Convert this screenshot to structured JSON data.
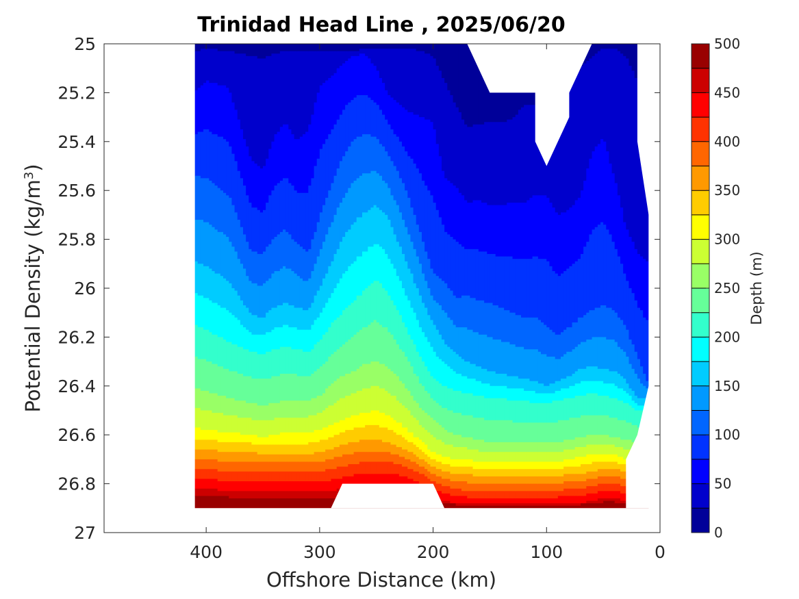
{
  "title": "Trinidad Head Line , 2025/06/20",
  "chart_data": {
    "type": "contour",
    "title": "Trinidad Head Line , 2025/06/20",
    "xlabel": "Offshore Distance (km)",
    "ylabel_prefix": "Potential Density (kg/m",
    "ylabel_sup": "3",
    "ylabel_suffix": ")",
    "x_reversed": true,
    "y_reversed": true,
    "xlim": [
      490,
      0
    ],
    "ylim": [
      25,
      27
    ],
    "x_ticks": [
      400,
      300,
      200,
      100,
      0
    ],
    "y_ticks": [
      25,
      25.2,
      25.4,
      25.6,
      25.8,
      26,
      26.2,
      26.4,
      26.6,
      26.8,
      27
    ],
    "y_tick_labels": [
      "25",
      "25.2",
      "25.4",
      "25.6",
      "25.8",
      "26",
      "26.2",
      "26.4",
      "26.6",
      "26.8",
      "27"
    ],
    "colorbar": {
      "label": "Depth (m)",
      "range": [
        0,
        500
      ],
      "ticks": [
        0,
        50,
        100,
        150,
        200,
        250,
        300,
        350,
        400,
        450,
        500
      ],
      "levels": 20,
      "colormap": "jet",
      "placement": "right"
    },
    "data_extent": {
      "x": [
        410,
        10
      ],
      "y": [
        25,
        26.9
      ]
    },
    "contour_lines": [
      {
        "level": 25,
        "x": [
          410,
          400,
          380,
          360,
          350,
          340,
          330,
          320,
          310,
          300,
          290,
          280,
          270,
          260,
          250,
          240,
          230,
          220,
          210,
          200,
          190,
          180,
          170,
          160,
          150,
          140,
          130,
          120,
          110,
          100,
          90,
          80,
          70,
          60,
          50,
          40,
          30,
          20
        ],
        "y": [
          25.03,
          25.02,
          25.03,
          25.05,
          25.06,
          25.04,
          25.03,
          25.03,
          25.03,
          25.03,
          25.03,
          25.03,
          25.03,
          25.02,
          25.02,
          25.02,
          25.02,
          25.02,
          25.03,
          25.05,
          25.15,
          25.25,
          25.34,
          25.33,
          25.32,
          25.32,
          25.31,
          25.25,
          25.25,
          25.25,
          25.22,
          25.15,
          25.1,
          25.05,
          25.02,
          25.02,
          25.05,
          25.15
        ]
      },
      {
        "level": 50,
        "x": [
          410,
          400,
          380,
          360,
          350,
          340,
          330,
          320,
          310,
          300,
          290,
          280,
          270,
          260,
          250,
          240,
          230,
          220,
          210,
          200,
          190,
          180,
          170,
          160,
          150,
          140,
          130,
          120,
          110,
          100,
          90,
          80,
          70,
          60,
          50,
          40,
          30,
          20,
          10
        ],
        "y": [
          25.2,
          25.15,
          25.18,
          25.48,
          25.52,
          25.38,
          25.32,
          25.4,
          25.35,
          25.18,
          25.14,
          25.08,
          25.05,
          25.04,
          25.1,
          25.2,
          25.25,
          25.28,
          25.3,
          25.32,
          25.55,
          25.58,
          25.65,
          25.64,
          25.66,
          25.66,
          25.65,
          25.65,
          25.62,
          25.62,
          25.7,
          25.68,
          25.62,
          25.45,
          25.38,
          25.55,
          25.75,
          25.85,
          25.9
        ]
      },
      {
        "level": 100,
        "x": [
          410,
          400,
          380,
          360,
          350,
          340,
          330,
          320,
          310,
          300,
          290,
          280,
          270,
          260,
          250,
          240,
          230,
          220,
          210,
          200,
          190,
          180,
          170,
          160,
          150,
          140,
          130,
          120,
          110,
          100,
          90,
          80,
          70,
          60,
          50,
          40,
          30,
          20,
          10
        ],
        "y": [
          25.54,
          25.55,
          25.62,
          25.85,
          25.86,
          25.79,
          25.76,
          25.82,
          25.86,
          25.71,
          25.58,
          25.47,
          25.39,
          25.37,
          25.38,
          25.45,
          25.53,
          25.65,
          25.79,
          25.94,
          25.97,
          26.04,
          26.03,
          26.05,
          26.06,
          26.08,
          26.1,
          26.12,
          26.12,
          26.15,
          26.2,
          26.16,
          26.12,
          26.09,
          26.07,
          26.09,
          26.16,
          26.28,
          26.39
        ]
      },
      {
        "level": 150,
        "x": [
          410,
          400,
          380,
          360,
          350,
          340,
          330,
          320,
          310,
          300,
          290,
          280,
          270,
          260,
          250,
          240,
          230,
          220,
          210,
          200,
          190,
          180,
          170,
          160,
          150,
          140,
          130,
          120,
          110,
          100,
          90,
          80,
          70,
          60,
          50,
          40,
          30,
          20
        ],
        "y": [
          25.89,
          25.91,
          25.97,
          26.11,
          26.12,
          26.08,
          26.06,
          26.08,
          26.09,
          26.0,
          25.9,
          25.8,
          25.73,
          25.69,
          25.66,
          25.71,
          25.82,
          25.93,
          26.05,
          26.14,
          26.22,
          26.27,
          26.3,
          26.32,
          26.34,
          26.35,
          26.36,
          26.37,
          26.38,
          26.4,
          26.38,
          26.36,
          26.33,
          26.32,
          26.33,
          26.34,
          26.38,
          26.45
        ]
      },
      {
        "level": 200,
        "x": [
          410,
          400,
          380,
          360,
          350,
          340,
          330,
          320,
          310,
          300,
          290,
          280,
          270,
          260,
          250,
          240,
          230,
          220,
          210,
          200,
          190,
          180,
          170,
          160,
          150,
          140,
          130,
          120,
          110,
          100,
          90,
          80,
          70,
          60,
          50,
          40,
          30,
          20
        ],
        "y": [
          26.15,
          26.17,
          26.22,
          26.26,
          26.27,
          26.25,
          26.24,
          26.25,
          26.26,
          26.22,
          26.15,
          26.1,
          26.05,
          26.01,
          25.96,
          26.02,
          26.1,
          26.2,
          26.29,
          26.37,
          26.4,
          26.42,
          26.43,
          26.44,
          26.45,
          26.45,
          26.46,
          26.46,
          26.47,
          26.47,
          26.46,
          26.45,
          26.44,
          26.43,
          26.44,
          26.45,
          26.47,
          26.5
        ]
      },
      {
        "level": 250,
        "x": [
          410,
          400,
          380,
          360,
          350,
          340,
          330,
          320,
          310,
          300,
          290,
          280,
          270,
          260,
          250,
          240,
          230,
          220,
          210,
          200,
          190,
          180,
          170,
          160,
          150,
          140,
          130,
          120,
          110,
          100,
          90,
          80,
          70,
          60,
          50,
          40,
          30,
          20
        ],
        "y": [
          26.41,
          26.42,
          26.45,
          26.47,
          26.48,
          26.47,
          26.46,
          26.46,
          26.46,
          26.44,
          26.4,
          26.36,
          26.34,
          26.31,
          26.3,
          26.32,
          26.37,
          26.43,
          26.5,
          26.54,
          26.58,
          26.6,
          26.61,
          26.62,
          26.63,
          26.63,
          26.63,
          26.63,
          26.63,
          26.63,
          26.63,
          26.62,
          26.61,
          26.6,
          26.6,
          26.61,
          26.62,
          26.63
        ]
      },
      {
        "level": 300,
        "x": [
          410,
          400,
          380,
          360,
          350,
          340,
          330,
          320,
          310,
          300,
          290,
          280,
          270,
          260,
          250,
          240,
          230,
          220,
          210,
          200,
          190,
          180,
          170,
          160,
          150,
          140,
          130,
          120,
          110,
          100,
          90,
          80,
          70,
          60,
          50,
          40,
          30
        ],
        "y": [
          26.57,
          26.58,
          26.59,
          26.6,
          26.61,
          26.6,
          26.59,
          26.59,
          26.59,
          26.58,
          26.56,
          26.54,
          26.52,
          26.51,
          26.5,
          26.52,
          26.55,
          26.59,
          26.63,
          26.67,
          26.69,
          26.7,
          26.7,
          26.71,
          26.71,
          26.71,
          26.71,
          26.71,
          26.71,
          26.71,
          26.71,
          26.7,
          26.69,
          26.68,
          26.68,
          26.68,
          26.7
        ]
      },
      {
        "level": 350,
        "x": [
          410,
          400,
          380,
          360,
          350,
          340,
          330,
          320,
          310,
          300,
          290,
          280,
          270,
          260,
          250,
          240,
          230,
          220,
          210,
          200,
          190,
          180,
          170,
          160,
          150,
          140,
          130,
          120,
          110,
          100,
          90,
          80,
          70,
          60,
          50,
          40,
          30
        ],
        "y": [
          26.66,
          26.66,
          26.67,
          26.67,
          26.68,
          26.68,
          26.68,
          26.68,
          26.68,
          26.67,
          26.66,
          26.64,
          26.63,
          26.62,
          26.62,
          26.63,
          26.65,
          26.67,
          26.7,
          26.73,
          26.75,
          26.76,
          26.76,
          26.77,
          26.77,
          26.77,
          26.77,
          26.77,
          26.77,
          26.77,
          26.77,
          26.76,
          26.76,
          26.75,
          26.74,
          26.74,
          26.75
        ]
      },
      {
        "level": 400,
        "x": [
          410,
          400,
          380,
          360,
          350,
          340,
          330,
          320,
          310,
          300,
          290,
          280,
          270,
          260,
          250,
          240,
          230,
          220,
          210,
          200,
          190,
          180,
          170,
          160,
          150,
          140,
          130,
          120,
          110,
          100,
          90,
          80,
          70,
          60,
          50,
          40,
          30
        ],
        "y": [
          26.74,
          26.74,
          26.75,
          26.75,
          26.75,
          26.75,
          26.75,
          26.75,
          26.75,
          26.75,
          26.74,
          26.73,
          26.72,
          26.71,
          26.71,
          26.71,
          26.72,
          26.74,
          26.76,
          26.79,
          26.81,
          26.82,
          26.83,
          26.83,
          26.83,
          26.83,
          26.83,
          26.83,
          26.83,
          26.83,
          26.83,
          26.82,
          26.82,
          26.81,
          26.8,
          26.8,
          26.81
        ]
      },
      {
        "level": 450,
        "x": [
          410,
          400,
          380,
          360,
          350,
          340,
          330,
          320,
          310,
          300,
          290,
          280,
          270,
          260,
          250,
          240,
          230,
          220,
          210,
          200,
          190,
          180,
          170,
          160,
          150,
          140,
          130,
          120,
          110,
          100,
          90,
          80,
          70,
          60,
          50,
          40,
          30
        ],
        "y": [
          26.82,
          26.82,
          26.83,
          26.83,
          26.83,
          26.83,
          26.83,
          26.83,
          26.83,
          26.83,
          26.83,
          26.82,
          26.81,
          26.81,
          26.81,
          26.81,
          26.81,
          26.82,
          26.84,
          26.86,
          26.87,
          26.88,
          26.88,
          26.88,
          26.88,
          26.88,
          26.88,
          26.88,
          26.88,
          26.88,
          26.88,
          26.88,
          26.88,
          26.87,
          26.86,
          26.86,
          26.87
        ]
      },
      {
        "level": 500,
        "x": [
          410,
          400,
          380,
          360,
          350,
          340,
          330,
          320,
          310,
          300,
          290
        ],
        "y": [
          26.88,
          26.88,
          26.88,
          26.88,
          26.88,
          26.88,
          26.88,
          26.88,
          26.88,
          26.88,
          26.89
        ]
      }
    ],
    "no_data_regions": [
      {
        "x": [
          410,
          490,
          490,
          410
        ],
        "y": [
          25,
          25,
          27,
          27
        ]
      },
      {
        "x": [
          0,
          10,
          10,
          0
        ],
        "y": [
          25,
          25,
          27,
          27
        ]
      },
      {
        "x": [
          490,
          0,
          0,
          490
        ],
        "y": [
          26.9,
          26.9,
          27,
          27
        ]
      },
      {
        "x": [
          290,
          280,
          200,
          190
        ],
        "y": [
          26.9,
          26.8,
          26.8,
          26.9
        ]
      },
      {
        "x": [
          170,
          150,
          110,
          110,
          100,
          80,
          80,
          60
        ],
        "y": [
          25,
          25.2,
          25.2,
          25.4,
          25.5,
          25.3,
          25.2,
          25
        ]
      },
      {
        "x": [
          30,
          20,
          20,
          10,
          10,
          20,
          30,
          30,
          0,
          0
        ],
        "y": [
          25,
          25,
          25.4,
          25.7,
          26.4,
          26.6,
          26.7,
          26.9,
          26.9,
          25
        ]
      }
    ]
  }
}
